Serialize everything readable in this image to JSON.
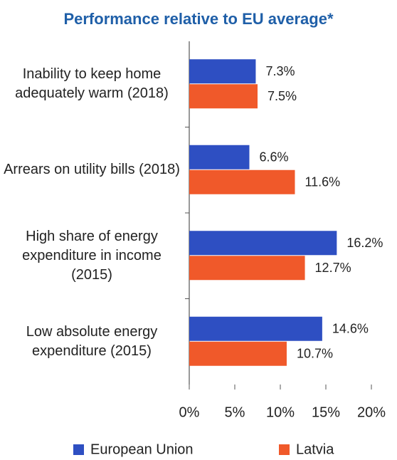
{
  "chart_data": {
    "type": "bar",
    "orientation": "horizontal",
    "title": "Performance relative to EU average*",
    "categories": [
      "Inability to keep home adequately warm (2018)",
      "Arrears on utility bills (2018)",
      "High share of energy expenditure in income (2015)",
      "Low absolute energy expenditure (2015)"
    ],
    "series": [
      {
        "name": "European Union",
        "color": "#2e4fc2",
        "values": [
          7.3,
          6.6,
          16.2,
          14.6
        ],
        "value_labels": [
          "7.3%",
          "6.6%",
          "16.2%",
          "14.6%"
        ]
      },
      {
        "name": "Latvia",
        "color": "#f0592a",
        "values": [
          7.5,
          11.6,
          12.7,
          10.7
        ],
        "value_labels": [
          "7.5%",
          "11.6%",
          "12.7%",
          "10.7%"
        ]
      }
    ],
    "xlim": [
      0,
      20
    ],
    "xticks": [
      {
        "value": 0,
        "label": "0%"
      },
      {
        "value": 5,
        "label": "5%"
      },
      {
        "value": 10,
        "label": "10%"
      },
      {
        "value": 15,
        "label": "15%"
      },
      {
        "value": 20,
        "label": "20%"
      }
    ],
    "legend": "bottom"
  }
}
